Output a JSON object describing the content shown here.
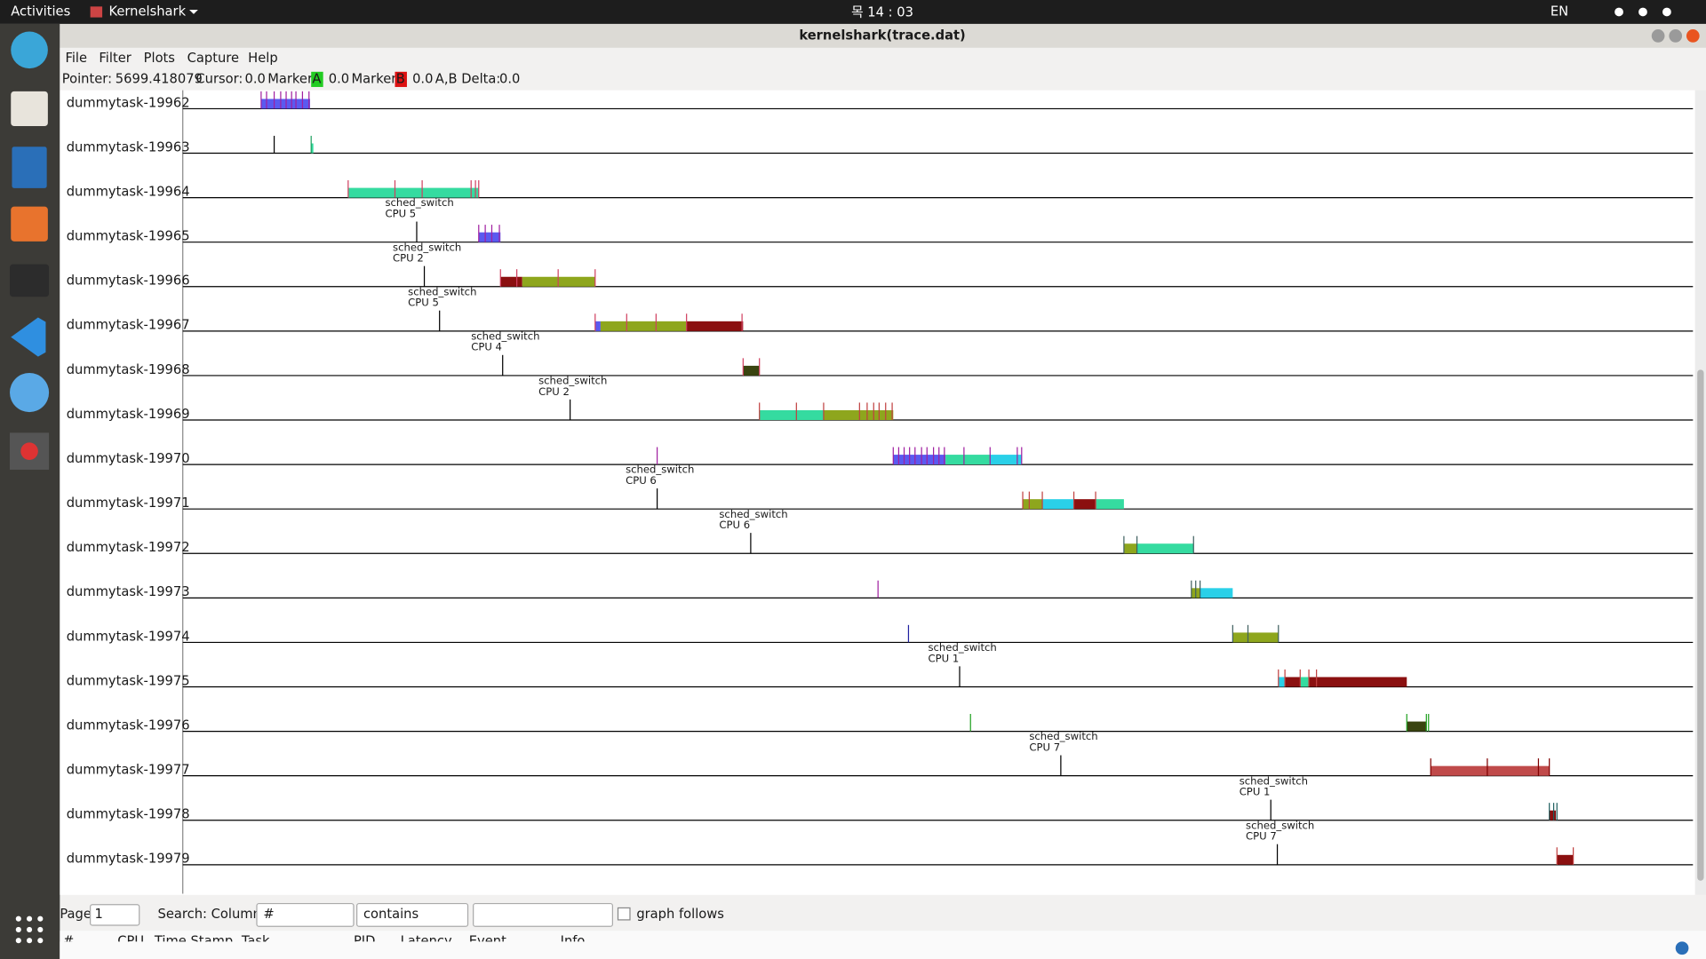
{
  "topbar": {
    "activities": "Activities",
    "app": "Kernelshark",
    "clock": "목 14 : 03",
    "lang": "EN"
  },
  "window": {
    "title": "kernelshark(trace.dat)"
  },
  "menu": [
    "File",
    "Filter",
    "Plots",
    "Capture",
    "Help"
  ],
  "status": {
    "pointer_label": "Pointer:",
    "pointer": "5699.418079",
    "cursor_label": "Cursor:",
    "cursor": "0.0",
    "marker_a_label": "Marker",
    "marker_a_tag": "A",
    "marker_a": "0.0",
    "marker_b_label": "Marker",
    "marker_b_tag": "B",
    "marker_b": "0.0",
    "delta_label": "A,B Delta:",
    "delta": "0.0"
  },
  "tasks": [
    "dummytask-19962",
    "dummytask-19963",
    "dummytask-19964",
    "dummytask-19965",
    "dummytask-19966",
    "dummytask-19967",
    "dummytask-19968",
    "dummytask-19969",
    "dummytask-19970",
    "dummytask-19971",
    "dummytask-19972",
    "dummytask-19973",
    "dummytask-19974",
    "dummytask-19975",
    "dummytask-19976",
    "dummytask-19977",
    "dummytask-19978",
    "dummytask-19979"
  ],
  "annotations": [
    {
      "event": "sched_switch",
      "cpu": "CPU 5"
    },
    {
      "event": "sched_switch",
      "cpu": "CPU 2"
    },
    {
      "event": "sched_switch",
      "cpu": "CPU 5"
    },
    {
      "event": "sched_switch",
      "cpu": "CPU 4"
    },
    {
      "event": "sched_switch",
      "cpu": "CPU 2"
    },
    {
      "event": "sched_switch",
      "cpu": "CPU 6"
    },
    {
      "event": "sched_switch",
      "cpu": "CPU 6"
    },
    {
      "event": "sched_switch",
      "cpu": "CPU 1"
    },
    {
      "event": "sched_switch",
      "cpu": "CPU 7"
    },
    {
      "event": "sched_switch",
      "cpu": "CPU 1"
    },
    {
      "event": "sched_switch",
      "cpu": "CPU 7"
    }
  ],
  "search": {
    "page_label": "Page",
    "page": "1",
    "search_label": "Search: Column:",
    "column": "#",
    "mode": "contains",
    "graph_follows": "graph follows"
  },
  "table_header": [
    "#",
    "CPU",
    "Time Stamp",
    "Task",
    "PID",
    "Latency",
    "Event",
    "Info"
  ]
}
